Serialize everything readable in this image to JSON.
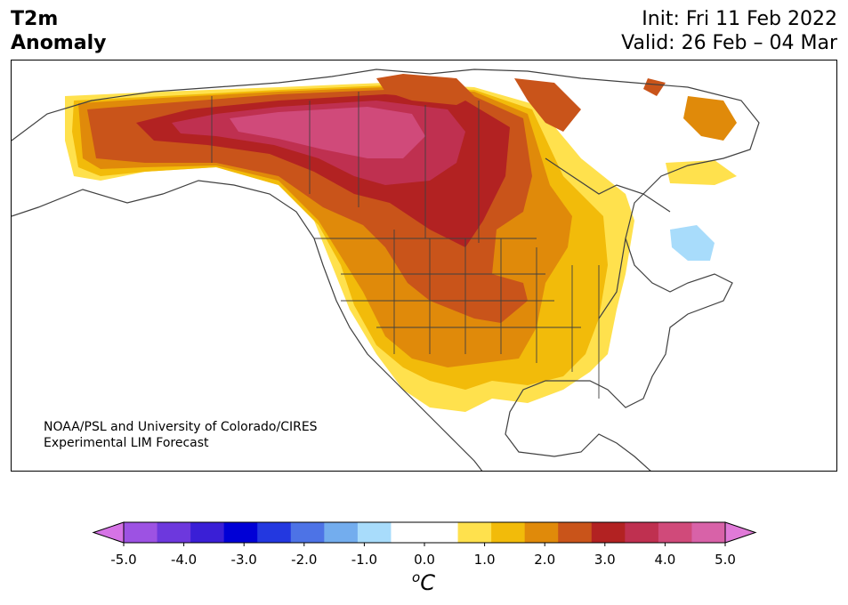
{
  "header": {
    "title_line1": "T2m",
    "title_line2": "Anomaly",
    "init": "Init: Fri 11 Feb 2022",
    "valid": "Valid: 26 Feb – 04 Mar"
  },
  "credit": {
    "line1": "NOAA/PSL and University of Colorado/CIRES",
    "line2": "Experimental LIM Forecast"
  },
  "colorbar": {
    "ticks": [
      "-5.0",
      "-4.0",
      "-3.0",
      "-2.0",
      "-1.0",
      "0.0",
      "1.0",
      "2.0",
      "3.0",
      "4.0",
      "5.0"
    ],
    "units_base": "o",
    "units_main": "C",
    "colors": [
      "#d673e6",
      "#9d52e3",
      "#6d38dd",
      "#3a1fd6",
      "#0000d6",
      "#2338e0",
      "#4d73e6",
      "#73adee",
      "#a8dcfb",
      "#ffffff",
      "#ffffff",
      "#ffe14d",
      "#f2bb0a",
      "#e08a0a",
      "#c9541a",
      "#b22222",
      "#bf3050",
      "#d04a7a",
      "#d862a8",
      "#e07ad8"
    ]
  },
  "map": {
    "region": "North America",
    "anomaly_colors": {
      "c05": "#ffe14d",
      "c10": "#f2bb0a",
      "c15": "#e08a0a",
      "c20": "#c9541a",
      "c25": "#b22222",
      "c30": "#bf3050",
      "c35": "#d04a7a",
      "cold": "#a8dcfb"
    }
  }
}
